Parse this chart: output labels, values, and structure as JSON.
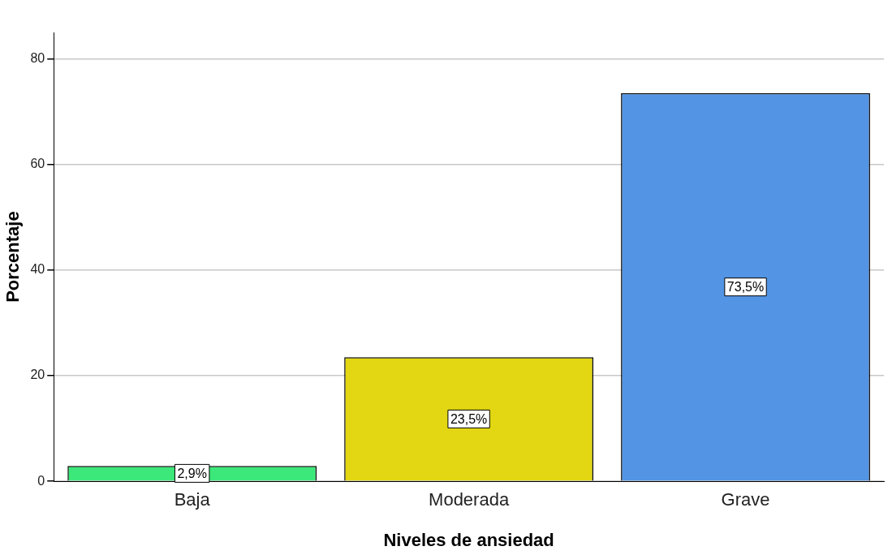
{
  "chart_data": {
    "type": "bar",
    "xlabel": "Niveles de ansiedad",
    "ylabel": "Porcentaje",
    "categories": [
      "Baja",
      "Moderada",
      "Grave"
    ],
    "values": [
      2.9,
      23.5,
      73.5
    ],
    "colors": [
      "#3de87a",
      "#e2d712",
      "#5394e4"
    ],
    "value_labels": [
      "2,9%",
      "23,5%",
      "73,5%"
    ],
    "ylim": [
      0,
      85
    ],
    "yticks": [
      0,
      20,
      40,
      60,
      80
    ],
    "grid": "y",
    "legend": false
  }
}
